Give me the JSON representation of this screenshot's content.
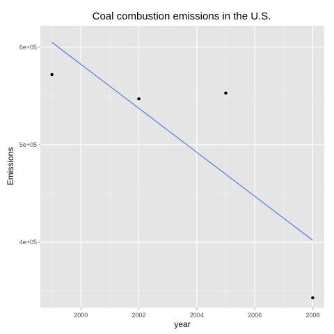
{
  "chart_data": {
    "type": "scatter",
    "title": "Coal combustion emissions in the U.S.",
    "xlabel": "year",
    "ylabel": "Emissions",
    "xlim": [
      1998.6,
      2008.4
    ],
    "ylim": [
      333000,
      622000
    ],
    "xticks": [
      2000,
      2002,
      2004,
      2006,
      2008
    ],
    "xtick_labels": [
      "2000",
      "2002",
      "2004",
      "2006",
      "2008"
    ],
    "yticks": [
      400000,
      500000,
      600000
    ],
    "ytick_labels": [
      "4e+05",
      "5e+05",
      "6e+05"
    ],
    "grid": true,
    "background": "#e5e5e5",
    "grid_color": "#ffffff",
    "points": [
      {
        "x": 1999,
        "y": 572000
      },
      {
        "x": 2002,
        "y": 547000
      },
      {
        "x": 2005,
        "y": 553000
      },
      {
        "x": 2008,
        "y": 343000
      }
    ],
    "point_color": "#000000",
    "trend_line": {
      "x": [
        1999,
        2008
      ],
      "y": [
        605000,
        402000
      ],
      "color": "#3366ff"
    }
  }
}
